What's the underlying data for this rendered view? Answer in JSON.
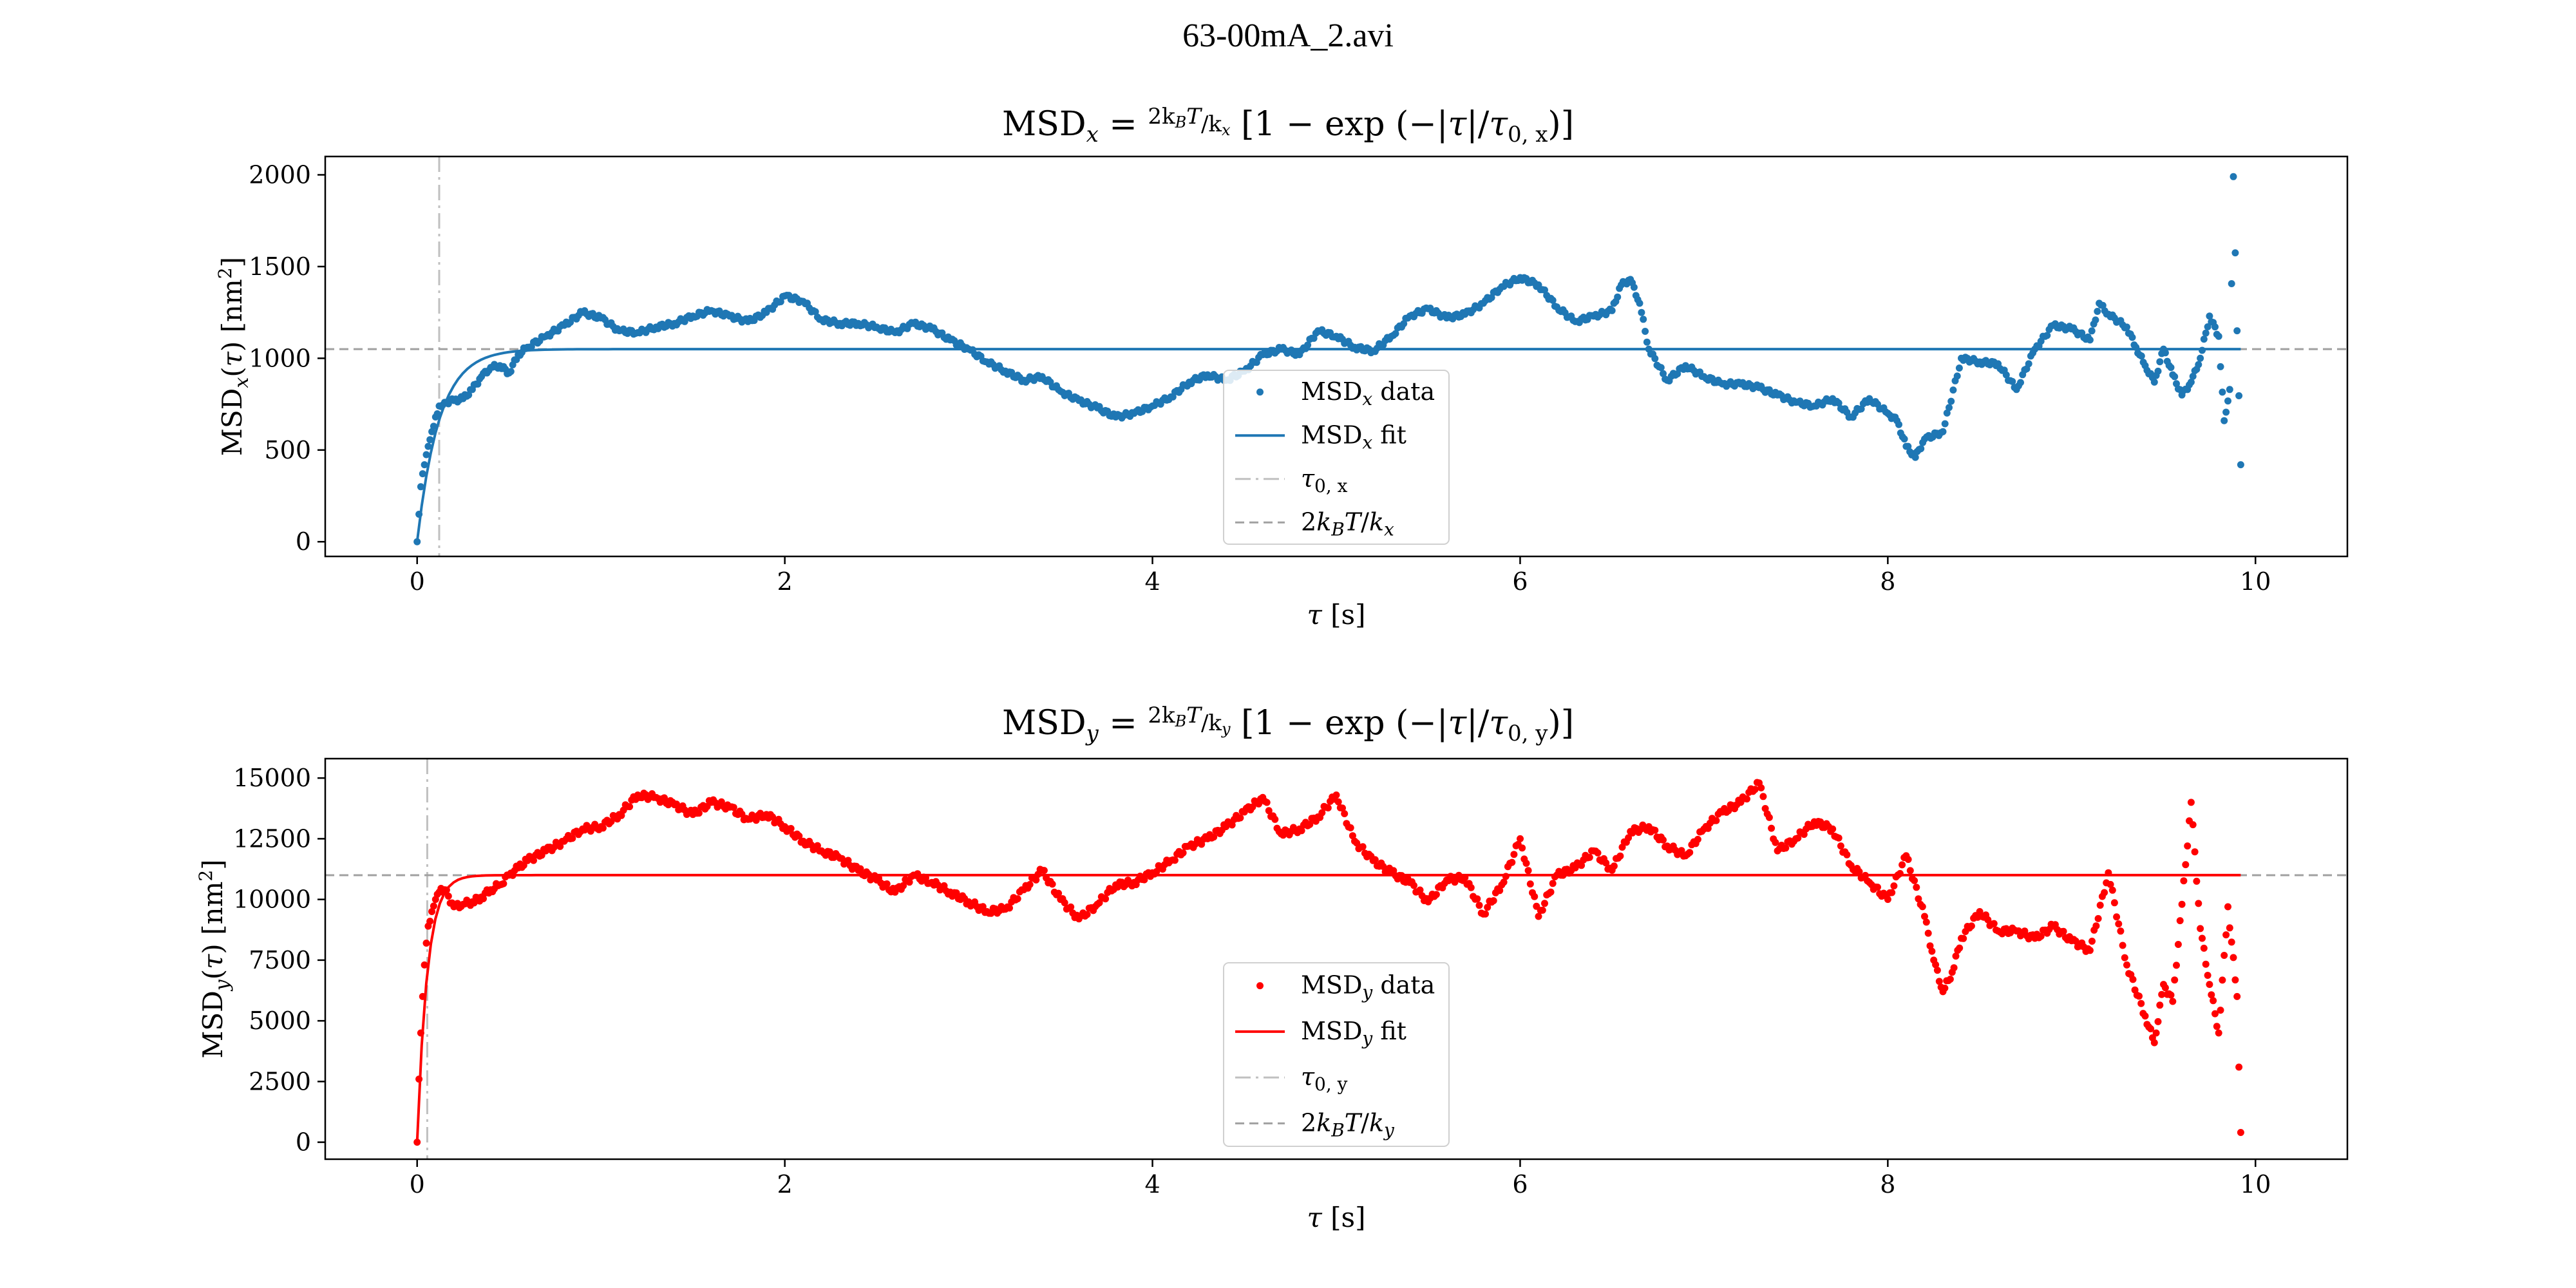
{
  "figure_title": "63-00mA_2.avi",
  "chart_data": [
    {
      "type": "scatter",
      "title": "MSD_x = (2k_BT/k_x)[1 − exp(−|τ|/τ_{0,x})]",
      "xlabel": "τ [s]",
      "ylabel": "MSD_x(τ) [nm²]",
      "xlim": [
        -0.5,
        10.5
      ],
      "ylim": [
        -80,
        2100
      ],
      "xticks": [
        0,
        2,
        4,
        6,
        8,
        10
      ],
      "yticks": [
        0,
        500,
        1000,
        1500,
        2000
      ],
      "color": "#1f77b4",
      "grid": false,
      "legend": {
        "position": "lower-center",
        "entries": [
          "MSD_x data",
          "MSD_x fit",
          "τ_{0,x}",
          "2k_BT/k_x"
        ]
      },
      "plateau": 1050,
      "tau0": 0.12,
      "series": [
        {
          "name": "MSD_x data",
          "kind": "points",
          "x": [
            0.0,
            0.02,
            0.04,
            0.06,
            0.08,
            0.1,
            0.12,
            0.15,
            0.2,
            0.25,
            0.3,
            0.35,
            0.4,
            0.45,
            0.5,
            0.55,
            0.6,
            0.7,
            0.8,
            0.9,
            1.0,
            1.1,
            1.2,
            1.3,
            1.4,
            1.5,
            1.6,
            1.7,
            1.8,
            1.9,
            2.0,
            2.1,
            2.2,
            2.3,
            2.4,
            2.5,
            2.6,
            2.7,
            2.8,
            2.9,
            3.0,
            3.1,
            3.2,
            3.3,
            3.4,
            3.5,
            3.6,
            3.7,
            3.8,
            3.9,
            4.0,
            4.1,
            4.2,
            4.3,
            4.4,
            4.5,
            4.6,
            4.7,
            4.8,
            4.9,
            5.0,
            5.1,
            5.2,
            5.3,
            5.4,
            5.5,
            5.6,
            5.7,
            5.8,
            5.9,
            6.0,
            6.1,
            6.2,
            6.3,
            6.4,
            6.5,
            6.55,
            6.6,
            6.65,
            6.7,
            6.8,
            6.9,
            7.0,
            7.1,
            7.2,
            7.3,
            7.4,
            7.5,
            7.6,
            7.7,
            7.8,
            7.9,
            8.0,
            8.05,
            8.1,
            8.15,
            8.2,
            8.3,
            8.4,
            8.5,
            8.6,
            8.7,
            8.8,
            8.9,
            9.0,
            9.1,
            9.15,
            9.2,
            9.3,
            9.35,
            9.4,
            9.45,
            9.5,
            9.55,
            9.6,
            9.65,
            9.7,
            9.75,
            9.8,
            9.83,
            9.86,
            9.88,
            9.9,
            9.92
          ],
          "y": [
            0,
            300,
            420,
            520,
            600,
            680,
            740,
            760,
            770,
            780,
            830,
            900,
            950,
            960,
            920,
            1020,
            1060,
            1120,
            1180,
            1250,
            1220,
            1150,
            1140,
            1170,
            1190,
            1230,
            1260,
            1230,
            1200,
            1250,
            1340,
            1310,
            1210,
            1190,
            1190,
            1170,
            1140,
            1190,
            1160,
            1100,
            1050,
            980,
            930,
            880,
            900,
            820,
            770,
            730,
            680,
            700,
            740,
            790,
            870,
            910,
            880,
            930,
            1020,
            1050,
            1020,
            1150,
            1120,
            1060,
            1040,
            1120,
            1230,
            1270,
            1220,
            1240,
            1300,
            1390,
            1440,
            1400,
            1280,
            1200,
            1230,
            1260,
            1400,
            1430,
            1300,
            1050,
            880,
            960,
            900,
            860,
            860,
            840,
            800,
            760,
            740,
            780,
            680,
            780,
            700,
            660,
            520,
            460,
            560,
            600,
            1000,
            980,
            970,
            830,
            1050,
            1180,
            1160,
            1100,
            1300,
            1240,
            1170,
            1060,
            960,
            870,
            1050,
            910,
            800,
            870,
            1000,
            1230,
            1120,
            660,
            830,
            1990,
            1150,
            420
          ]
        },
        {
          "name": "MSD_x fit",
          "kind": "fit"
        },
        {
          "name": "τ_{0,x}",
          "kind": "vline",
          "value": 0.12
        },
        {
          "name": "2k_BT/k_x",
          "kind": "hline",
          "value": 1050
        }
      ]
    },
    {
      "type": "scatter",
      "title": "MSD_y = (2k_BT/k_y)[1 − exp(−|τ|/τ_{0,y})]",
      "xlabel": "τ [s]",
      "ylabel": "MSD_y(τ) [nm²]",
      "xlim": [
        -0.5,
        10.5
      ],
      "ylim": [
        -700,
        15800
      ],
      "xticks": [
        0,
        2,
        4,
        6,
        8,
        10
      ],
      "yticks": [
        0,
        2500,
        5000,
        7500,
        10000,
        12500,
        15000
      ],
      "color": "#ff0000",
      "grid": false,
      "legend": {
        "position": "lower-center",
        "entries": [
          "MSD_y data",
          "MSD_y fit",
          "τ_{0,y}",
          "2k_BT/k_y"
        ]
      },
      "plateau": 11000,
      "tau0": 0.055,
      "series": [
        {
          "name": "MSD_y data",
          "kind": "points",
          "x": [
            0.0,
            0.01,
            0.02,
            0.03,
            0.04,
            0.05,
            0.06,
            0.08,
            0.1,
            0.12,
            0.15,
            0.2,
            0.25,
            0.3,
            0.35,
            0.4,
            0.45,
            0.5,
            0.55,
            0.6,
            0.7,
            0.8,
            0.9,
            1.0,
            1.1,
            1.2,
            1.3,
            1.4,
            1.5,
            1.6,
            1.7,
            1.8,
            1.9,
            2.0,
            2.1,
            2.2,
            2.3,
            2.4,
            2.5,
            2.6,
            2.7,
            2.8,
            2.9,
            3.0,
            3.1,
            3.2,
            3.3,
            3.4,
            3.5,
            3.6,
            3.7,
            3.8,
            3.9,
            4.0,
            4.1,
            4.2,
            4.3,
            4.4,
            4.5,
            4.6,
            4.7,
            4.8,
            4.9,
            5.0,
            5.1,
            5.2,
            5.3,
            5.4,
            5.5,
            5.6,
            5.7,
            5.8,
            5.9,
            6.0,
            6.1,
            6.2,
            6.3,
            6.4,
            6.5,
            6.6,
            6.7,
            6.8,
            6.9,
            7.0,
            7.1,
            7.2,
            7.3,
            7.4,
            7.5,
            7.6,
            7.7,
            7.8,
            7.9,
            8.0,
            8.1,
            8.2,
            8.25,
            8.3,
            8.35,
            8.4,
            8.5,
            8.6,
            8.7,
            8.8,
            8.9,
            9.0,
            9.1,
            9.2,
            9.3,
            9.4,
            9.45,
            9.5,
            9.55,
            9.6,
            9.65,
            9.7,
            9.75,
            9.8,
            9.85,
            9.9,
            9.92
          ],
          "y": [
            0,
            2600,
            4500,
            6000,
            7300,
            8200,
            8900,
            9500,
            10000,
            10300,
            10400,
            9700,
            9800,
            9900,
            10100,
            10400,
            10600,
            11000,
            11300,
            11600,
            12000,
            12400,
            12900,
            13000,
            13500,
            14300,
            14200,
            13900,
            13500,
            14000,
            13800,
            13300,
            13500,
            13000,
            12400,
            12000,
            11700,
            11200,
            10800,
            10300,
            11000,
            10700,
            10300,
            9900,
            9500,
            9600,
            10400,
            11200,
            10000,
            9200,
            9800,
            10600,
            10700,
            11100,
            11600,
            12200,
            12500,
            13000,
            13600,
            14200,
            12700,
            12900,
            13400,
            14300,
            12400,
            11600,
            11100,
            10700,
            9900,
            10800,
            10900,
            9400,
            10600,
            12500,
            9300,
            11000,
            11300,
            12000,
            11200,
            12800,
            13000,
            12200,
            11800,
            12900,
            13600,
            14000,
            14800,
            12000,
            12500,
            13200,
            12900,
            11400,
            10700,
            10000,
            11800,
            9300,
            7500,
            6200,
            7000,
            8400,
            9500,
            8700,
            8700,
            8400,
            8900,
            8300,
            7900,
            11100,
            7300,
            5200,
            4100,
            6500,
            5800,
            9800,
            14000,
            8800,
            6500,
            4500,
            9700,
            6000,
            400
          ]
        },
        {
          "name": "MSD_y fit",
          "kind": "fit"
        },
        {
          "name": "τ_{0,y}",
          "kind": "vline",
          "value": 0.055
        },
        {
          "name": "2k_BT/k_y",
          "kind": "hline",
          "value": 11000
        }
      ]
    }
  ]
}
